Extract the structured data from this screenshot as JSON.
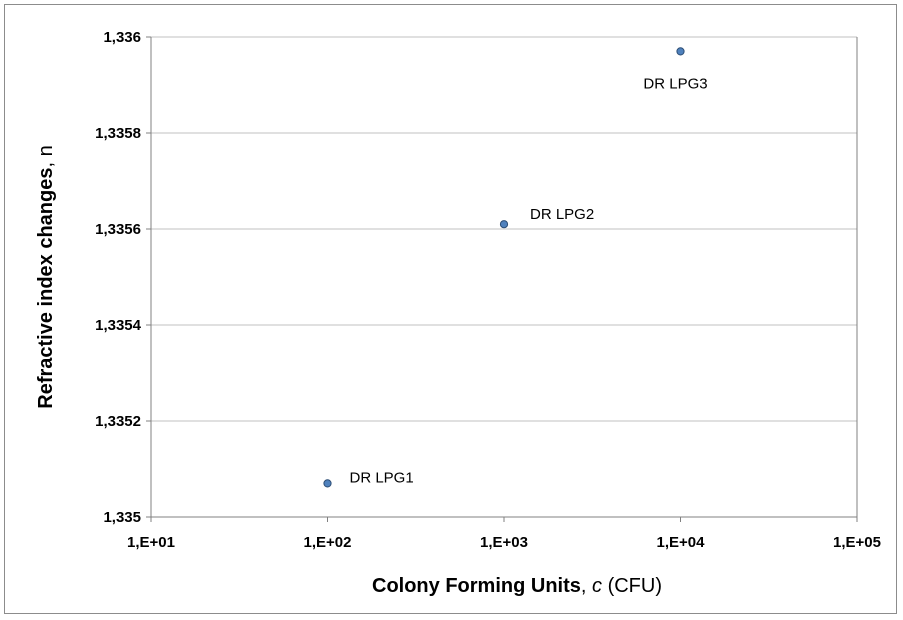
{
  "chart_data": {
    "type": "scatter",
    "xscale": "log",
    "xlim": [
      10,
      100000
    ],
    "ylim": [
      1.335,
      1.336
    ],
    "grid": {
      "y": true,
      "x": false
    },
    "xticks": [
      {
        "value": 10,
        "label": "1,E+01"
      },
      {
        "value": 100,
        "label": "1,E+02"
      },
      {
        "value": 1000,
        "label": "1,E+03"
      },
      {
        "value": 10000,
        "label": "1,E+04"
      },
      {
        "value": 100000,
        "label": "1,E+05"
      }
    ],
    "yticks": [
      {
        "value": 1.335,
        "label": "1,335"
      },
      {
        "value": 1.3352,
        "label": "1,3352"
      },
      {
        "value": 1.3354,
        "label": "1,3354"
      },
      {
        "value": 1.3356,
        "label": "1,3356"
      },
      {
        "value": 1.3358,
        "label": "1,3358"
      },
      {
        "value": 1.336,
        "label": "1,336"
      }
    ],
    "points": [
      {
        "x": 100,
        "y": 1.33507,
        "label": "DR LPG1"
      },
      {
        "x": 1000,
        "y": 1.33561,
        "label": "DR LPG2"
      },
      {
        "x": 10000,
        "y": 1.33597,
        "label": "DR LPG3"
      }
    ],
    "xlabel": {
      "bold": "Colony Forming Units",
      "sep": ", ",
      "italic": "c",
      "rest": " (CFU)"
    },
    "ylabel": {
      "bold": "Refractive index changes",
      "sep": ", ",
      "rest": "n"
    },
    "colors": {
      "marker_fill": "#4f81bd",
      "marker_stroke": "#2c4d75",
      "grid": "#c0c0c0",
      "axis": "#808080"
    }
  }
}
